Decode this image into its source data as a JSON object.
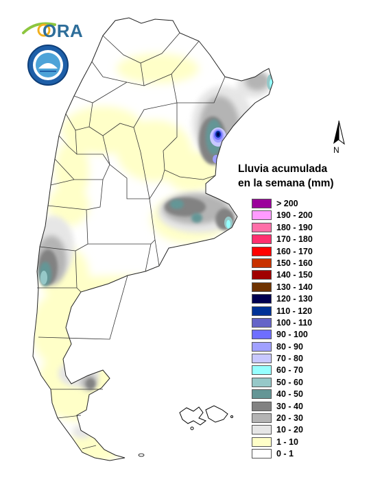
{
  "logo": {
    "text": "ORA"
  },
  "north_arrow": {
    "label": "N"
  },
  "legend": {
    "title_line1": "Lluvia acumulada",
    "title_line2": "en la semana (mm)",
    "items": [
      {
        "label": "> 200",
        "color": "#9b009b"
      },
      {
        "label": "190 - 200",
        "color": "#ff9bff"
      },
      {
        "label": "180 - 190",
        "color": "#ff6fa8"
      },
      {
        "label": "170 - 180",
        "color": "#ff2f6f"
      },
      {
        "label": "160 - 170",
        "color": "#ff0000"
      },
      {
        "label": "150 - 160",
        "color": "#c83200"
      },
      {
        "label": "140 - 150",
        "color": "#a00000"
      },
      {
        "label": "130 - 140",
        "color": "#6e3200"
      },
      {
        "label": "120 - 130",
        "color": "#000050"
      },
      {
        "label": "110 - 120",
        "color": "#003296"
      },
      {
        "label": "100 - 110",
        "color": "#6464c8"
      },
      {
        "label": "90 - 100",
        "color": "#6e6eff"
      },
      {
        "label": "80 - 90",
        "color": "#a0a0ff"
      },
      {
        "label": "70 - 80",
        "color": "#c8c8ff"
      },
      {
        "label": "60 - 70",
        "color": "#96ffff"
      },
      {
        "label": "50 - 60",
        "color": "#96c8c8"
      },
      {
        "label": "40 - 50",
        "color": "#649696"
      },
      {
        "label": "30 - 40",
        "color": "#828282"
      },
      {
        "label": "20 - 30",
        "color": "#b4b4b4"
      },
      {
        "label": "10 - 20",
        "color": "#e6e6e6"
      },
      {
        "label": "1 - 10",
        "color": "#ffffc8"
      },
      {
        "label": "0 - 1",
        "color": "#ffffff"
      }
    ]
  }
}
